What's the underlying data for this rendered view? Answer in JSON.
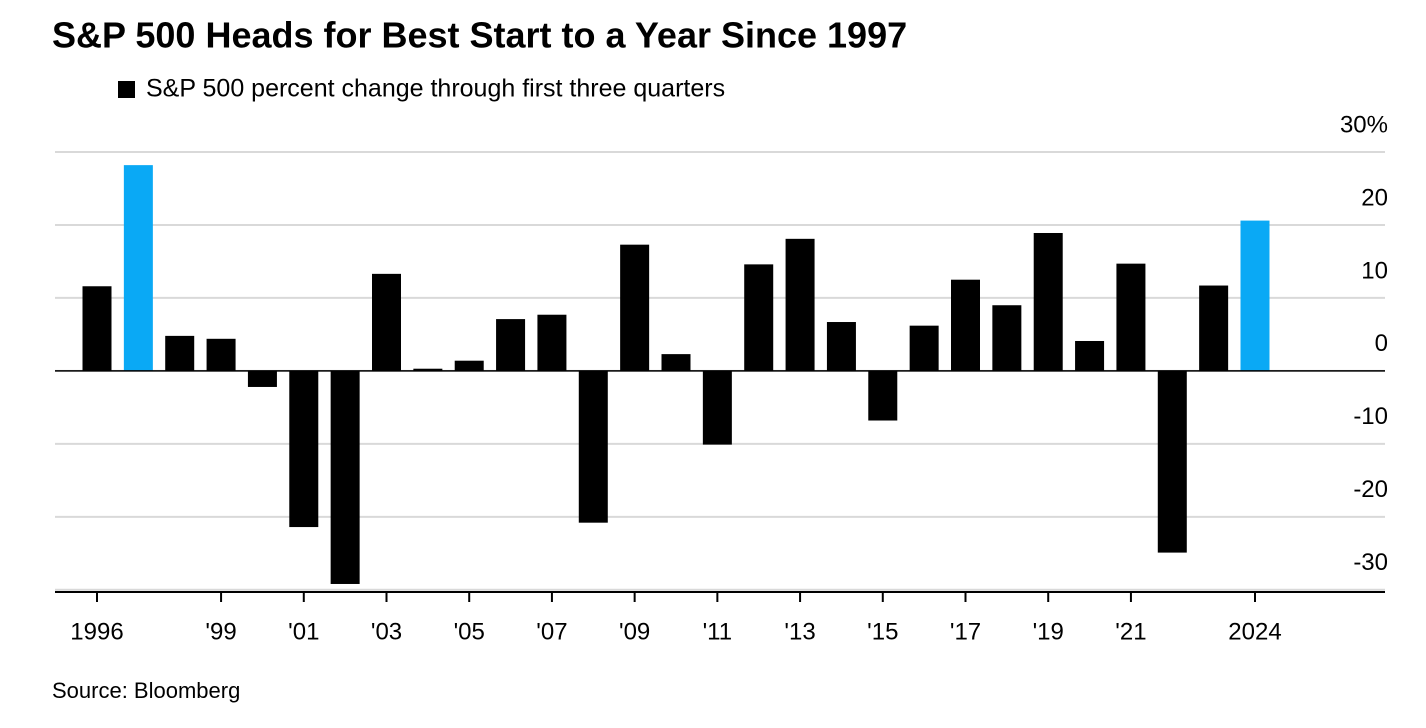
{
  "chart_data": {
    "type": "bar",
    "title": "S&P 500 Heads for Best Start to a Year Since 1997",
    "source": "Source: Bloomberg",
    "categories": [
      "1996",
      null,
      null,
      "'99",
      null,
      "'01",
      null,
      "'03",
      null,
      "'05",
      null,
      "'07",
      null,
      "'09",
      null,
      "'11",
      null,
      "'13",
      null,
      "'15",
      null,
      "'17",
      null,
      "'19",
      null,
      "'21",
      null,
      null,
      "2024"
    ],
    "series": [
      {
        "name": "S&P 500 percent change through first three quarters",
        "color": "#000000",
        "values": [
          11.6,
          28.2,
          4.8,
          4.4,
          -2.2,
          -21.4,
          -29.2,
          13.3,
          0.3,
          1.4,
          7.1,
          7.7,
          -20.8,
          17.3,
          2.3,
          -10.1,
          14.6,
          18.1,
          6.7,
          -6.8,
          6.2,
          12.5,
          9.0,
          18.9,
          4.1,
          14.7,
          -24.9,
          11.7,
          20.6
        ],
        "colors": [
          "#000000",
          "#0aa9f5",
          "#000000",
          "#000000",
          "#000000",
          "#000000",
          "#000000",
          "#000000",
          "#000000",
          "#000000",
          "#000000",
          "#000000",
          "#000000",
          "#000000",
          "#000000",
          "#000000",
          "#000000",
          "#000000",
          "#000000",
          "#000000",
          "#000000",
          "#000000",
          "#000000",
          "#000000",
          "#000000",
          "#000000",
          "#000000",
          "#000000",
          "#0aa9f5"
        ]
      }
    ],
    "ylim": [
      -30.3,
      30
    ],
    "yticks": [
      {
        "value": 30,
        "label": "30%"
      },
      20,
      10,
      0,
      -10,
      -20,
      -30
    ],
    "grid": true
  }
}
